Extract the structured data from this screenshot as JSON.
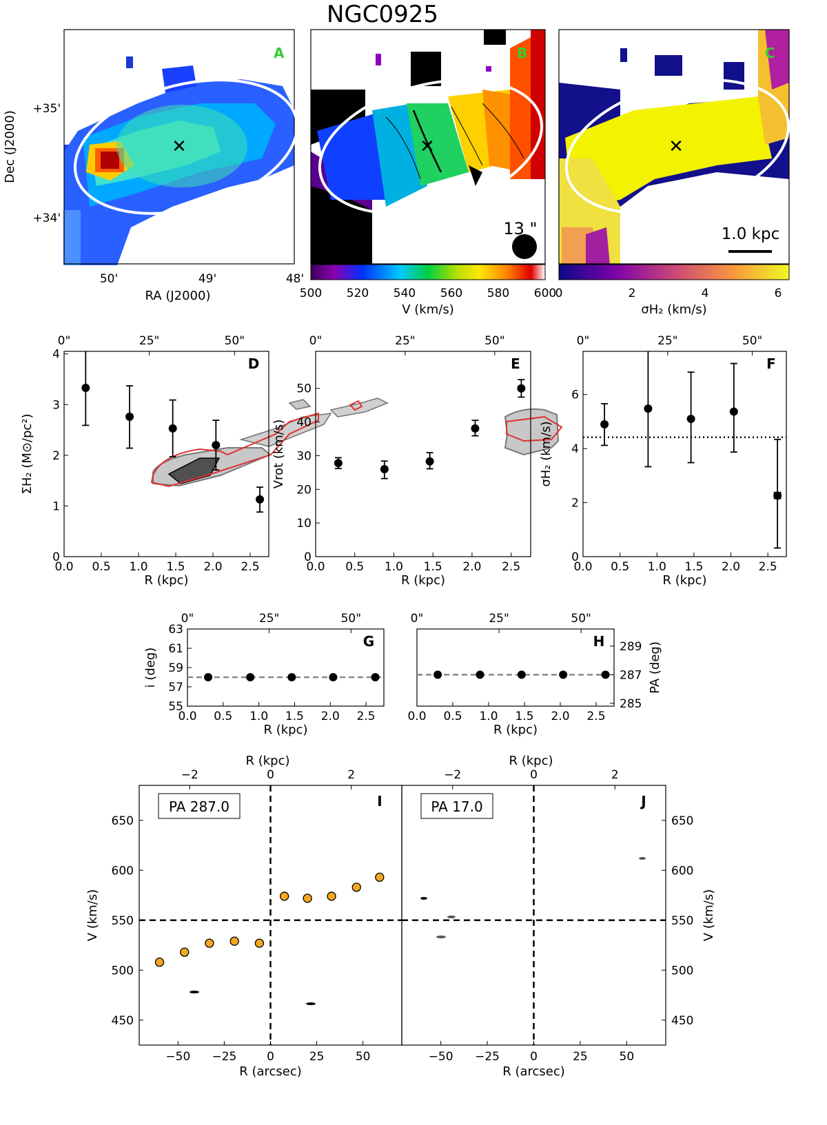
{
  "figure_title": "NGC0925",
  "colors": {
    "panel_letter": "#33cc33",
    "marker": "#000000",
    "highlight": "#e03030",
    "orange": "#f5a623"
  },
  "chart_data": [
    {
      "id": "A",
      "type": "heatmap",
      "letter": "A",
      "quantity": "H2 surface density map",
      "xlabel": "RA (J2000)",
      "ylabel": "Dec (J2000)",
      "xticks": [
        "50'",
        "49'",
        "48'"
      ],
      "yticks": [
        "+35'",
        "+34'"
      ]
    },
    {
      "id": "B",
      "type": "heatmap",
      "letter": "B",
      "quantity": "velocity map",
      "xlabel": "V (km/s)",
      "colorbar_ticks": [
        "500",
        "520",
        "540",
        "560",
        "580",
        "600"
      ],
      "beam_label": "13 \""
    },
    {
      "id": "C",
      "type": "heatmap",
      "letter": "C",
      "quantity": "velocity dispersion map",
      "xlabel": "σH₂ (km/s)",
      "colorbar_ticks": [
        "0",
        "2",
        "4",
        "6"
      ],
      "scalebar_label": "1.0 kpc"
    },
    {
      "id": "D",
      "type": "scatter",
      "letter": "D",
      "xlabel": "R (kpc)",
      "ylabel": "ΣH₂ (M⊙/pc²)",
      "xlim": [
        0,
        2.75
      ],
      "ylim": [
        0,
        4.05
      ],
      "xticks": [
        "0.0",
        "0.5",
        "1.0",
        "1.5",
        "2.0",
        "2.5"
      ],
      "yticks": [
        "0",
        "1",
        "2",
        "3",
        "4"
      ],
      "top_ticks": [
        "0\"",
        "25\"",
        "50\""
      ],
      "x": [
        0.29,
        0.88,
        1.46,
        2.04,
        2.63
      ],
      "y": [
        3.33,
        2.76,
        2.53,
        2.2,
        1.13
      ],
      "yerr_low": [
        0.74,
        0.62,
        0.56,
        0.49,
        0.25
      ],
      "yerr_high": [
        0.72,
        0.61,
        0.56,
        0.49,
        0.24
      ]
    },
    {
      "id": "E",
      "type": "scatter",
      "letter": "E",
      "xlabel": "R (kpc)",
      "ylabel": "Vrot (km/s)",
      "xlim": [
        0,
        2.75
      ],
      "ylim": [
        0,
        61
      ],
      "xticks": [
        "0.0",
        "0.5",
        "1.0",
        "1.5",
        "2.0",
        "2.5"
      ],
      "yticks": [
        "0",
        "10",
        "20",
        "30",
        "40",
        "50"
      ],
      "top_ticks": [
        "0\"",
        "25\"",
        "50\""
      ],
      "x": [
        0.29,
        0.88,
        1.46,
        2.04,
        2.63
      ],
      "y": [
        27.8,
        26.0,
        28.3,
        38.1,
        50.0
      ],
      "yerr_low": [
        1.6,
        2.8,
        2.2,
        2.2,
        2.6
      ],
      "yerr_high": [
        1.6,
        2.4,
        2.6,
        2.4,
        2.6
      ]
    },
    {
      "id": "F",
      "type": "scatter",
      "letter": "F",
      "xlabel": "R (kpc)",
      "ylabel": "σH₂ (km/s)",
      "xlim": [
        0,
        2.75
      ],
      "ylim": [
        0,
        7.6
      ],
      "xticks": [
        "0.0",
        "0.5",
        "1.0",
        "1.5",
        "2.0",
        "2.5"
      ],
      "yticks": [
        "0",
        "2",
        "4",
        "6"
      ],
      "top_ticks": [
        "0\"",
        "25\"",
        "50\""
      ],
      "x": [
        0.29,
        0.88,
        1.46,
        2.04,
        2.63
      ],
      "y": [
        4.9,
        5.48,
        5.1,
        5.37,
        2.26
      ],
      "yerr_low": [
        0.78,
        2.15,
        1.62,
        1.5,
        1.94
      ],
      "yerr_high": [
        0.76,
        2.12,
        1.73,
        1.78,
        2.08
      ],
      "flagged_index": 4,
      "mean_line": 4.42
    },
    {
      "id": "G",
      "type": "scatter",
      "letter": "G",
      "xlabel": "R (kpc)",
      "ylabel": "i (deg)",
      "xlim": [
        0,
        2.75
      ],
      "ylim": [
        55,
        63
      ],
      "xticks": [
        "0.0",
        "0.5",
        "1.0",
        "1.5",
        "2.0",
        "2.5"
      ],
      "yticks": [
        "55",
        "57",
        "59",
        "61",
        "63"
      ],
      "top_ticks": [
        "0\"",
        "25\"",
        "50\""
      ],
      "x": [
        0.29,
        0.88,
        1.46,
        2.04,
        2.63
      ],
      "y": [
        58,
        58,
        58,
        58,
        58
      ],
      "mean_line": 58
    },
    {
      "id": "H",
      "type": "scatter",
      "letter": "H",
      "xlabel": "R (kpc)",
      "ylabel": "PA (deg)",
      "xlim": [
        0,
        2.75
      ],
      "ylim": [
        284.8,
        290.2
      ],
      "xticks": [
        "0.0",
        "0.5",
        "1.0",
        "1.5",
        "2.0",
        "2.5"
      ],
      "yticks": [
        "285",
        "287",
        "289"
      ],
      "top_ticks": [
        "0\"",
        "25\"",
        "50\""
      ],
      "x": [
        0.29,
        0.88,
        1.46,
        2.04,
        2.63
      ],
      "y": [
        287,
        287,
        287,
        287,
        287
      ],
      "mean_line": 287
    },
    {
      "id": "I",
      "type": "scatter",
      "letter": "I",
      "pv_label": "PA 287.0",
      "xlabel": "R (arcsec)",
      "ylabel": "V (km/s)",
      "top_label": "R (kpc)",
      "xlim": [
        -71,
        71
      ],
      "ylim": [
        425,
        685
      ],
      "xticks": [
        "−50",
        "−25",
        "0",
        "25",
        "50"
      ],
      "yticks": [
        "450",
        "500",
        "550",
        "600",
        "650"
      ],
      "top_ticks": [
        "−2",
        "0",
        "2"
      ],
      "systemic_velocity": 550,
      "x": [
        -60,
        -46.5,
        -33,
        -19.5,
        -6,
        7.5,
        20,
        33,
        46.5,
        59
      ],
      "y": [
        508,
        518,
        527,
        529,
        527,
        574,
        572,
        574,
        583,
        593
      ]
    },
    {
      "id": "J",
      "type": "scatter",
      "letter": "J",
      "pv_label": "PA 17.0",
      "xlabel": "R (arcsec)",
      "ylabel": "V (km/s)",
      "top_label": "R (kpc)",
      "xlim": [
        -71,
        71
      ],
      "ylim": [
        425,
        685
      ],
      "xticks": [
        "−50",
        "−25",
        "0",
        "25",
        "50"
      ],
      "yticks": [
        "450",
        "500",
        "550",
        "600",
        "650"
      ],
      "top_ticks": [
        "−2",
        "0",
        "2"
      ],
      "systemic_velocity": 550
    }
  ]
}
